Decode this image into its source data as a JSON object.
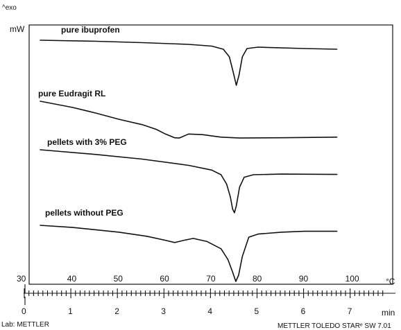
{
  "chart_data": {
    "type": "line",
    "y_unit_label": "^exo",
    "y_axis_unit": "mW",
    "temperature_axis": {
      "unit": "°C",
      "range": [
        30,
        107
      ],
      "ticks": [
        30,
        40,
        50,
        60,
        70,
        80,
        90,
        100
      ]
    },
    "time_axis": {
      "unit": "min",
      "range": [
        0,
        7.7
      ],
      "ticks": [
        0,
        1,
        2,
        3,
        4,
        5,
        6,
        7
      ]
    },
    "series": [
      {
        "name": "pure ibuprofen",
        "points": [
          [
            33,
            0.0
          ],
          [
            45,
            0.15
          ],
          [
            55,
            0.35
          ],
          [
            65,
            0.6
          ],
          [
            70,
            0.85
          ],
          [
            72.5,
            1.3
          ],
          [
            73.8,
            2.4
          ],
          [
            74.6,
            4.5
          ],
          [
            75.3,
            6.5
          ],
          [
            75.9,
            5.0
          ],
          [
            76.6,
            2.4
          ],
          [
            77.6,
            1.2
          ],
          [
            80,
            1.0
          ],
          [
            90,
            1.2
          ],
          [
            97,
            1.3
          ]
        ]
      },
      {
        "name": "pure Eudragit RL",
        "points": [
          [
            33,
            0.0
          ],
          [
            40,
            2.0
          ],
          [
            45,
            3.8
          ],
          [
            50,
            5.8
          ],
          [
            55,
            7.5
          ],
          [
            58,
            9.0
          ],
          [
            60,
            10.5
          ],
          [
            62,
            11.7
          ],
          [
            63,
            11.8
          ],
          [
            65,
            10.5
          ],
          [
            68,
            10.7
          ],
          [
            72,
            11.5
          ],
          [
            76,
            11.8
          ],
          [
            85,
            11.7
          ],
          [
            97,
            11.5
          ]
        ]
      },
      {
        "name": "pellets with 3% PEG",
        "points": [
          [
            33,
            0.0
          ],
          [
            45,
            1.5
          ],
          [
            55,
            3.0
          ],
          [
            65,
            5.0
          ],
          [
            70,
            6.5
          ],
          [
            72,
            8.0
          ],
          [
            73.2,
            11.0
          ],
          [
            74,
            15.0
          ],
          [
            74.5,
            19.0
          ],
          [
            74.9,
            20.2
          ],
          [
            75.3,
            18.0
          ],
          [
            76,
            12.0
          ],
          [
            77,
            8.8
          ],
          [
            79,
            8.0
          ],
          [
            85,
            7.8
          ],
          [
            97,
            7.9
          ]
        ]
      },
      {
        "name": "pellets without PEG",
        "points": [
          [
            33,
            0.0
          ],
          [
            40,
            0.7
          ],
          [
            50,
            2.2
          ],
          [
            56,
            3.5
          ],
          [
            60,
            4.8
          ],
          [
            62,
            5.5
          ],
          [
            64,
            4.8
          ],
          [
            66,
            4.2
          ],
          [
            69,
            5.2
          ],
          [
            72,
            7.5
          ],
          [
            73.5,
            11.0
          ],
          [
            74.5,
            15.0
          ],
          [
            75.2,
            18.0
          ],
          [
            75.8,
            16.0
          ],
          [
            76.6,
            10.0
          ],
          [
            78,
            3.8
          ],
          [
            80,
            2.8
          ],
          [
            85,
            2.2
          ],
          [
            90,
            1.9
          ],
          [
            97,
            1.9
          ]
        ]
      }
    ]
  },
  "footer": {
    "lab_label": "Lab: METTLER",
    "software_label": "METTLER TOLEDO STARᵉ SW 7.01"
  }
}
